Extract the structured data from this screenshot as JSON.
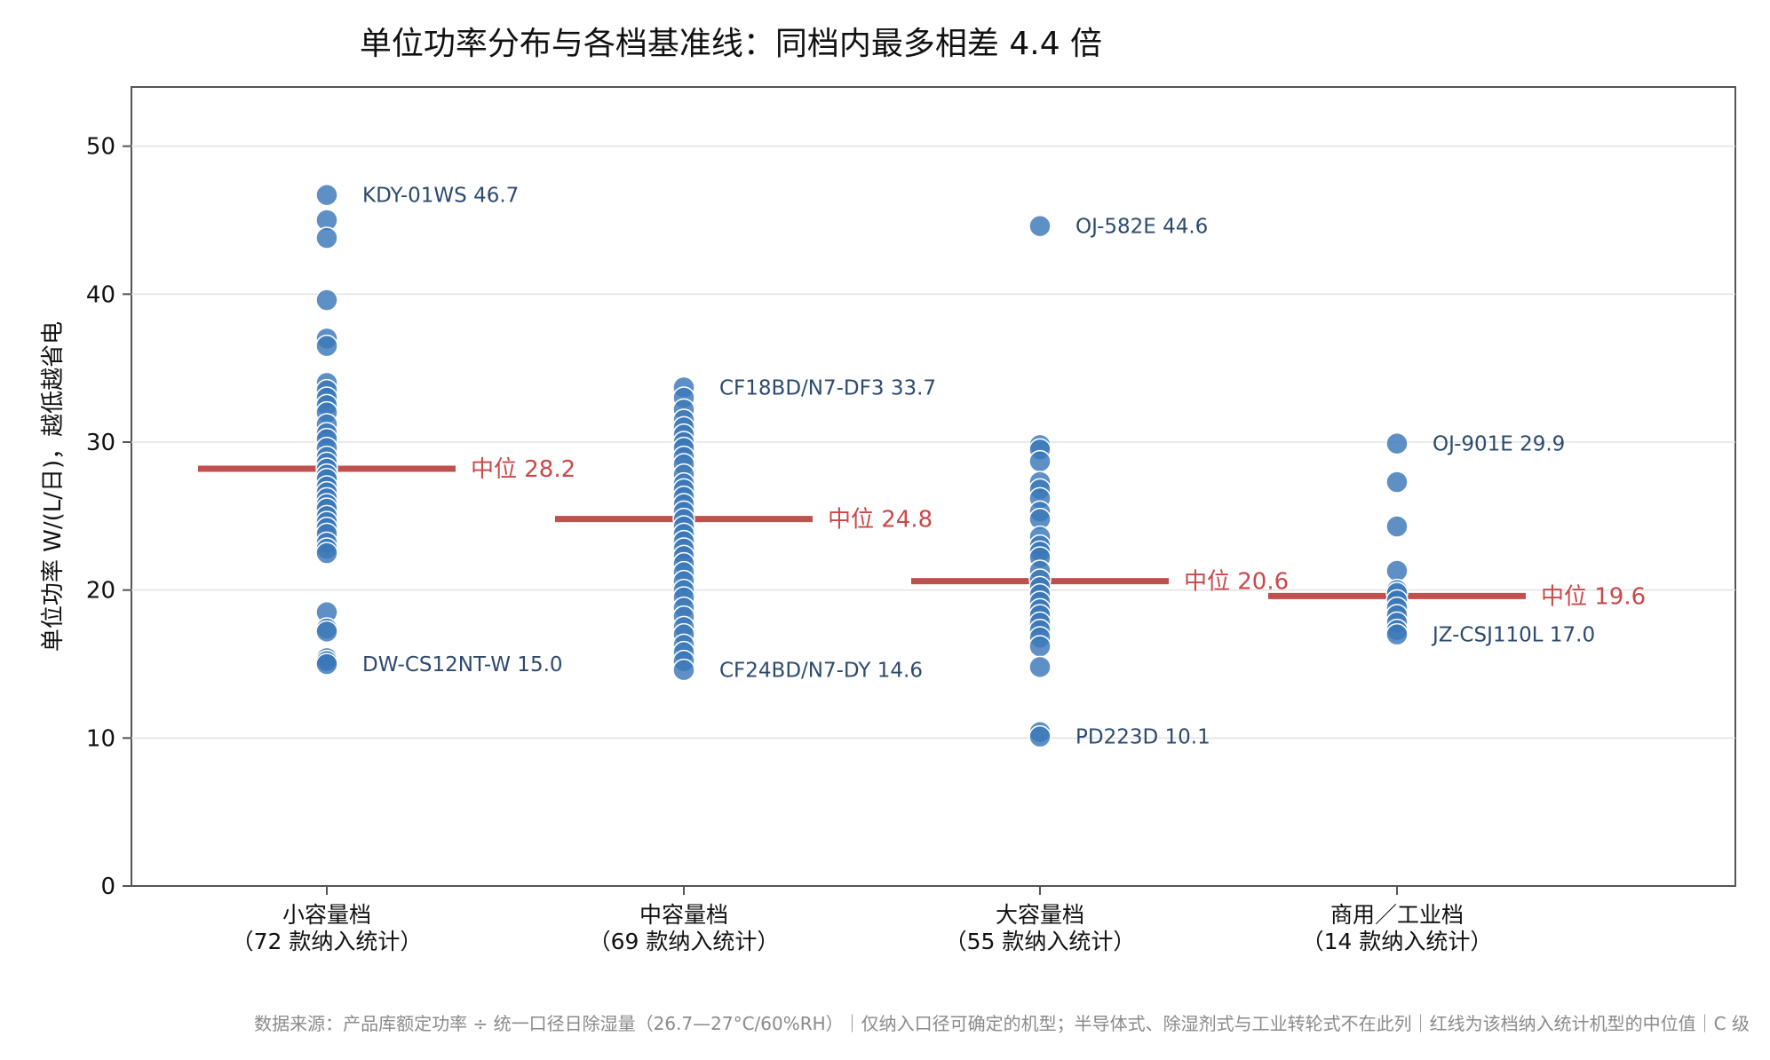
{
  "chart_data": {
    "type": "scatter",
    "title": "单位功率分布与各档基准线：同档内最多相差 4.4 倍",
    "ylabel": "单位功率 W/(L/日)，越低越省电",
    "ylim": [
      0,
      54
    ],
    "yticks": [
      0,
      10,
      20,
      30,
      40,
      50
    ],
    "grid": true,
    "colors": {
      "point": "#3a78b8",
      "median": "#c0504d",
      "point_label": "#2c4a6e",
      "median_label": "#c9484a"
    },
    "categories": [
      {
        "name": "小容量档",
        "count_label": "（72 款纳入统计）",
        "median": 28.2,
        "median_label": "中位 28.2",
        "values": [
          46.7,
          45.0,
          43.8,
          39.6,
          37.0,
          36.5,
          34.0,
          33.5,
          33.0,
          32.5,
          32.0,
          31.2,
          30.6,
          30.2,
          29.6,
          29.0,
          28.6,
          28.2,
          27.8,
          27.5,
          27.0,
          26.6,
          26.2,
          25.8,
          25.5,
          25.0,
          24.6,
          24.2,
          23.8,
          23.2,
          22.8,
          22.5,
          18.5,
          17.4,
          17.2,
          15.4,
          15.2,
          15.0
        ],
        "annotations": [
          {
            "name": "KDY-01WS",
            "value": 46.7
          },
          {
            "name": "DW-CS12NT-W",
            "value": 15.0
          }
        ]
      },
      {
        "name": "中容量档",
        "count_label": "（69 款纳入统计）",
        "median": 24.8,
        "median_label": "中位 24.8",
        "values": [
          33.7,
          33.0,
          32.2,
          31.5,
          31.0,
          30.5,
          30.0,
          29.6,
          29.0,
          28.5,
          27.8,
          27.2,
          26.8,
          26.3,
          25.8,
          25.3,
          24.8,
          24.3,
          23.8,
          23.3,
          22.8,
          22.3,
          21.8,
          21.2,
          20.6,
          20.0,
          19.5,
          18.8,
          18.2,
          17.5,
          17.0,
          16.3,
          15.8,
          15.2,
          14.6
        ],
        "annotations": [
          {
            "name": "CF18BD/N7-DF3",
            "value": 33.7
          },
          {
            "name": "CF24BD/N7-DY",
            "value": 14.6
          }
        ]
      },
      {
        "name": "大容量档",
        "count_label": "（55 款纳入统计）",
        "median": 20.6,
        "median_label": "中位 20.6",
        "values": [
          44.6,
          29.8,
          29.5,
          28.7,
          27.3,
          26.8,
          26.2,
          25.3,
          24.8,
          23.6,
          23.0,
          22.6,
          22.2,
          21.3,
          20.7,
          20.2,
          19.7,
          19.2,
          18.7,
          18.3,
          17.8,
          17.3,
          16.8,
          16.2,
          14.8,
          10.4,
          10.1
        ],
        "annotations": [
          {
            "name": "OJ-582E",
            "value": 44.6
          },
          {
            "name": "PD223D",
            "value": 10.1
          }
        ]
      },
      {
        "name": "商用／工业档",
        "count_label": "（14 款纳入统计）",
        "median": 19.6,
        "median_label": "中位 19.6",
        "values": [
          29.9,
          27.3,
          24.3,
          21.3,
          20.0,
          19.8,
          19.3,
          18.8,
          18.3,
          17.8,
          17.3,
          17.0
        ],
        "annotations": [
          {
            "name": "OJ-901E",
            "value": 29.9
          },
          {
            "name": "JZ-CSJ110L",
            "value": 17.0
          }
        ]
      }
    ]
  },
  "footer": {
    "note": "数据来源：产品库额定功率 ÷ 统一口径日除湿量（26.7—27°C/60%RH）｜仅纳入口径可确定的机型；半导体式、除湿剂式与工业转轮式不在此列｜红线为该档纳入统计机型的中位值｜C 级"
  }
}
